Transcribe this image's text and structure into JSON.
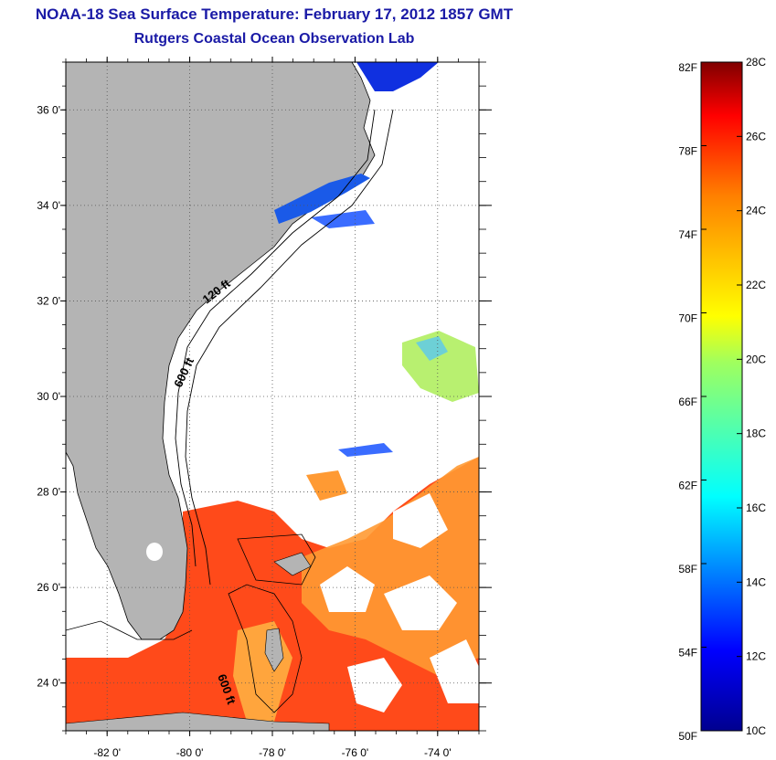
{
  "header": {
    "title": "NOAA-18 Sea Surface Temperature:  February 17, 2012 1857 GMT",
    "subtitle": "Rutgers Coastal Ocean Observation Lab"
  },
  "map": {
    "lon_range": [
      -83.0,
      -73.0
    ],
    "lat_range": [
      23.0,
      37.0
    ],
    "x_ticks": [
      {
        "value": -82,
        "label": "-82 0'"
      },
      {
        "value": -80,
        "label": "-80 0'"
      },
      {
        "value": -78,
        "label": "-78 0'"
      },
      {
        "value": -76,
        "label": "-76 0'"
      },
      {
        "value": -74,
        "label": "-74 0'"
      }
    ],
    "y_ticks": [
      {
        "value": 36,
        "label": "36 0'"
      },
      {
        "value": 34,
        "label": "34 0'"
      },
      {
        "value": 32,
        "label": "32 0'"
      },
      {
        "value": 30,
        "label": "30 0'"
      },
      {
        "value": 28,
        "label": "28 0'"
      },
      {
        "value": 26,
        "label": "26 0'"
      },
      {
        "value": 24,
        "label": "24 0'"
      }
    ],
    "contours": [
      {
        "label": "120 ft"
      },
      {
        "label": "600 ft"
      },
      {
        "label": "600 ft"
      }
    ],
    "colors": {
      "land": "#b4b4b4",
      "cloud": "#ffffff",
      "grid": "#555555"
    }
  },
  "colorbar": {
    "fahrenheit_labels": [
      "82F",
      "78F",
      "74F",
      "70F",
      "66F",
      "62F",
      "58F",
      "54F",
      "50F"
    ],
    "celsius_labels": [
      "28C",
      "26C",
      "24C",
      "22C",
      "20C",
      "18C",
      "16C",
      "14C",
      "12C",
      "10C"
    ],
    "range_c": [
      10,
      28
    ]
  }
}
